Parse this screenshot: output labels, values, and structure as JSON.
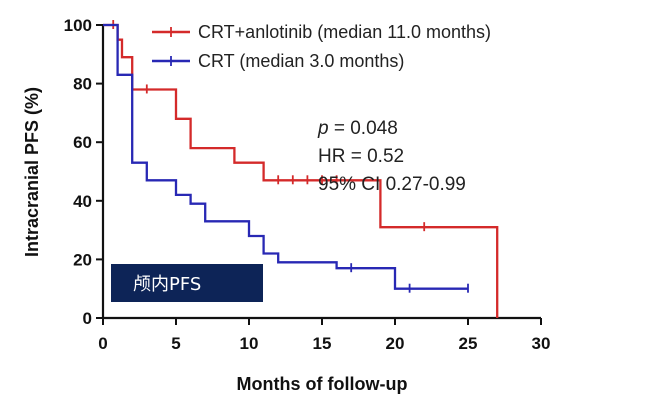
{
  "chart_data": {
    "type": "line",
    "subtype": "kaplan-meier step",
    "xlabel": "Months of follow-up",
    "ylabel": "Intracranial PFS (%)",
    "xlim": [
      0,
      30
    ],
    "ylim": [
      0,
      100
    ],
    "xticks": [
      0,
      5,
      10,
      15,
      20,
      25,
      30
    ],
    "yticks": [
      0,
      20,
      40,
      60,
      80,
      100
    ],
    "grid": false,
    "legend_position": "top",
    "series": [
      {
        "name": "CRT+anlotinib (median 11.0 months)",
        "color": "#d42a2a",
        "steps": [
          [
            0,
            100
          ],
          [
            1,
            100
          ],
          [
            1,
            95
          ],
          [
            1.3,
            95
          ],
          [
            1.3,
            89
          ],
          [
            2,
            89
          ],
          [
            2,
            78
          ],
          [
            5,
            78
          ],
          [
            5,
            68
          ],
          [
            6,
            68
          ],
          [
            6,
            58
          ],
          [
            9,
            58
          ],
          [
            9,
            53
          ],
          [
            11,
            53
          ],
          [
            11,
            47
          ],
          [
            19,
            47
          ],
          [
            19,
            31
          ],
          [
            27,
            31
          ],
          [
            27,
            0
          ]
        ],
        "censored": [
          [
            0.7,
            100
          ],
          [
            3,
            78
          ],
          [
            12,
            47
          ],
          [
            13,
            47
          ],
          [
            14,
            47
          ],
          [
            15,
            47
          ],
          [
            16,
            47
          ],
          [
            22,
            31
          ]
        ]
      },
      {
        "name": "CRT (median 3.0 months)",
        "color": "#2828b4",
        "steps": [
          [
            0,
            100
          ],
          [
            1,
            100
          ],
          [
            1,
            83
          ],
          [
            2,
            83
          ],
          [
            2,
            53
          ],
          [
            3,
            53
          ],
          [
            3,
            47
          ],
          [
            5,
            47
          ],
          [
            5,
            42
          ],
          [
            6,
            42
          ],
          [
            6,
            39
          ],
          [
            7,
            39
          ],
          [
            7,
            33
          ],
          [
            10,
            33
          ],
          [
            10,
            28
          ],
          [
            11,
            28
          ],
          [
            11,
            22
          ],
          [
            12,
            22
          ],
          [
            12,
            19
          ],
          [
            16,
            19
          ],
          [
            16,
            17
          ],
          [
            20,
            17
          ],
          [
            20,
            10
          ],
          [
            25,
            10
          ]
        ],
        "censored": [
          [
            17,
            17
          ],
          [
            21,
            10
          ],
          [
            25,
            10
          ]
        ]
      }
    ]
  },
  "stats": {
    "p_label": "p",
    "p_value": " = 0.048",
    "hr": "HR = 0.52",
    "ci": "95% CI 0.27-0.99"
  },
  "badge": {
    "label": "颅内PFS",
    "color": "#0d2457"
  }
}
